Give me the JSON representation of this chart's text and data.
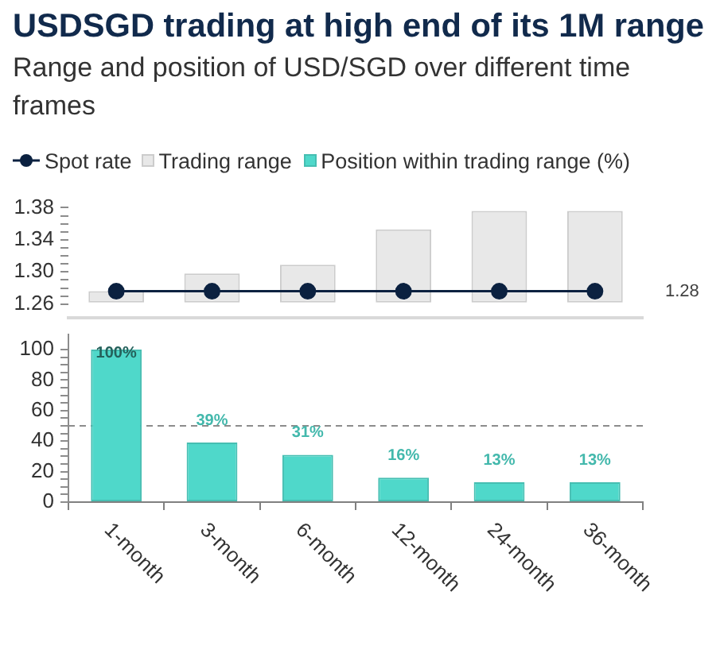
{
  "chart_data": [
    {
      "type": "bar",
      "title": "USDSGD trading at high end of its 1M range",
      "subtitle": "Range and position of USD/SGD over different time frames",
      "categories": [
        null,
        null,
        null,
        null,
        null,
        null
      ],
      "series": [
        {
          "name": "Spot rate",
          "type": "line",
          "color": "#0b2140",
          "values": [
            1.276,
            1.276,
            1.276,
            1.276,
            1.276,
            1.276
          ]
        },
        {
          "name": "Trading range",
          "type": "bar",
          "color": "#e8e8e8",
          "values": [
            0.014,
            0.036,
            0.047,
            0.091,
            0.114,
            0.114
          ],
          "base": [
            1.262,
            1.262,
            1.262,
            1.262,
            1.262,
            1.262
          ]
        }
      ],
      "marker": "circle",
      "ylim": [
        1.243,
        1.38
      ],
      "yticks": [
        1.26,
        {
          "value": 1.27,
          "label": null
        },
        {
          "value": 1.28,
          "label": null
        },
        {
          "value": 1.29,
          "label": null
        },
        {
          "value": 1.3,
          "label": "1.30"
        },
        {
          "value": 1.31,
          "label": null
        },
        {
          "value": 1.32,
          "label": null
        },
        {
          "value": 1.33,
          "label": null
        },
        1.34,
        {
          "value": 1.35,
          "label": null
        },
        {
          "value": 1.36,
          "label": null
        },
        {
          "value": 1.37,
          "label": null
        },
        1.38
      ],
      "annotations": [
        "1.28"
      ],
      "tick_labels": "y",
      "legend": "top left"
    },
    {
      "type": "bar",
      "categories": [
        "1-month",
        "3-month",
        "6-month",
        "12-month",
        "24-month",
        "36-month"
      ],
      "series": [
        {
          "name": "Position within trading range (%)",
          "color": "#4fd8ca",
          "values": [
            100,
            39,
            31,
            16,
            13,
            13
          ],
          "value_labels": [
            "100%",
            "39%",
            "31%",
            "16%",
            "13%",
            "13%"
          ]
        }
      ],
      "ylim": [
        0,
        110
      ],
      "yticks": [
        0,
        {
          "value": 5,
          "label": null
        },
        {
          "value": 10,
          "label": null
        },
        {
          "value": 15,
          "label": null
        },
        20,
        {
          "value": 25,
          "label": null
        },
        {
          "value": 30,
          "label": null
        },
        {
          "value": 35,
          "label": null
        },
        40,
        {
          "value": 45,
          "label": null
        },
        {
          "value": 50,
          "label": null
        },
        {
          "value": 55,
          "label": null
        },
        60,
        {
          "value": 65,
          "label": null
        },
        {
          "value": 70,
          "label": null
        },
        {
          "value": 75,
          "label": null
        },
        80,
        {
          "value": 85,
          "label": null
        },
        {
          "value": 90,
          "label": null
        },
        {
          "value": 95,
          "label": null
        },
        100
      ],
      "ref_lines": [
        {
          "axis": "y",
          "value": 50,
          "color": "#8c8c8c",
          "line_style": "dashed"
        }
      ],
      "legend": "top right"
    }
  ]
}
